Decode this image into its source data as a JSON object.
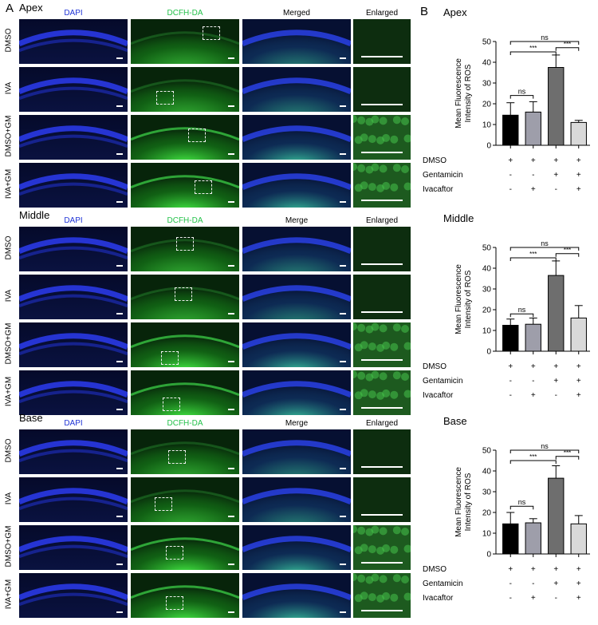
{
  "panel_labels": {
    "a": "A",
    "b": "B"
  },
  "micrographs": {
    "sections": [
      {
        "title": "Apex",
        "columns": [
          "DAPI",
          "DCFH-DA",
          "Merged",
          "Enlarged"
        ],
        "rows": [
          "DMSO",
          "IVA",
          "DMSO+GM",
          "IVA+GM"
        ]
      },
      {
        "title": "Middle",
        "columns": [
          "DAPI",
          "DCFH-DA",
          "Merge",
          "Enlarged"
        ],
        "rows": [
          "DMSO",
          "IVA",
          "DMSO+GM",
          "IVA+GM"
        ]
      },
      {
        "title": "Base",
        "columns": [
          "DAPI",
          "DCFH-DA",
          "Merge",
          "Enlarged"
        ],
        "rows": [
          "DMSO",
          "IVA",
          "DMSO+GM",
          "IVA+GM"
        ]
      }
    ],
    "colors": {
      "dapi": "#1a2fd0",
      "dcfh": "#2fd84a",
      "column_header_dapi": "#1f33d6",
      "column_header_dcfh": "#24c24a"
    }
  },
  "chart_data": [
    {
      "type": "bar",
      "title": "Apex",
      "ylabel": "Mean Fluorescence Intensity of ROS",
      "ylim": [
        0,
        50
      ],
      "yticks": [
        "0",
        "10",
        "20",
        "30",
        "40",
        "50"
      ],
      "values": [
        14.5,
        16,
        37.5,
        11
      ],
      "errors": [
        6,
        5,
        6,
        1
      ],
      "bar_colors": [
        "#000000",
        "#9e9eaa",
        "#6e6e6e",
        "#d9d9d9"
      ],
      "treatment_rows": [
        {
          "label": "DMSO",
          "marks": [
            "+",
            "+",
            "+",
            "+"
          ]
        },
        {
          "label": "Gentamicin",
          "marks": [
            "-",
            "-",
            "+",
            "+"
          ]
        },
        {
          "label": "Ivacaftor",
          "marks": [
            "-",
            "+",
            "-",
            "+"
          ]
        }
      ],
      "comparisons": [
        {
          "from": 0,
          "to": 1,
          "label": "ns",
          "y": 24
        },
        {
          "from": 0,
          "to": 2,
          "label": "***",
          "y": 45
        },
        {
          "from": 2,
          "to": 3,
          "label": "***",
          "y": 47
        },
        {
          "from": 0,
          "to": 3,
          "label": "ns",
          "y": 50
        }
      ]
    },
    {
      "type": "bar",
      "title": "Middle",
      "ylabel": "Mean Fluorescence Intensity of ROS",
      "ylim": [
        0,
        50
      ],
      "yticks": [
        "0",
        "10",
        "20",
        "30",
        "40",
        "50"
      ],
      "values": [
        12.5,
        13,
        36.5,
        16
      ],
      "errors": [
        3,
        3,
        7,
        6
      ],
      "bar_colors": [
        "#000000",
        "#9e9eaa",
        "#6e6e6e",
        "#d9d9d9"
      ],
      "treatment_rows": [
        {
          "label": "DMSO",
          "marks": [
            "+",
            "+",
            "+",
            "+"
          ]
        },
        {
          "label": "Gentamicin",
          "marks": [
            "-",
            "-",
            "+",
            "+"
          ]
        },
        {
          "label": "Ivacaftor",
          "marks": [
            "-",
            "+",
            "-",
            "+"
          ]
        }
      ],
      "comparisons": [
        {
          "from": 0,
          "to": 1,
          "label": "ns",
          "y": 18
        },
        {
          "from": 0,
          "to": 2,
          "label": "***",
          "y": 45
        },
        {
          "from": 2,
          "to": 3,
          "label": "***",
          "y": 47
        },
        {
          "from": 0,
          "to": 3,
          "label": "ns",
          "y": 50
        }
      ]
    },
    {
      "type": "bar",
      "title": "Base",
      "ylabel": "Mean Fluorescence Intensity of ROS",
      "ylim": [
        0,
        50
      ],
      "yticks": [
        "0",
        "10",
        "20",
        "30",
        "40",
        "50"
      ],
      "values": [
        14.5,
        15,
        36.5,
        14.5
      ],
      "errors": [
        5.5,
        2,
        6,
        4
      ],
      "bar_colors": [
        "#000000",
        "#9e9eaa",
        "#6e6e6e",
        "#d9d9d9"
      ],
      "treatment_rows": [
        {
          "label": "DMSO",
          "marks": [
            "+",
            "+",
            "+",
            "+"
          ]
        },
        {
          "label": "Gentamicin",
          "marks": [
            "-",
            "-",
            "+",
            "+"
          ]
        },
        {
          "label": "Ivacaftor",
          "marks": [
            "-",
            "+",
            "-",
            "+"
          ]
        }
      ],
      "comparisons": [
        {
          "from": 0,
          "to": 1,
          "label": "ns",
          "y": 23
        },
        {
          "from": 0,
          "to": 2,
          "label": "***",
          "y": 45
        },
        {
          "from": 2,
          "to": 3,
          "label": "***",
          "y": 47
        },
        {
          "from": 0,
          "to": 3,
          "label": "ns",
          "y": 50
        }
      ]
    }
  ]
}
